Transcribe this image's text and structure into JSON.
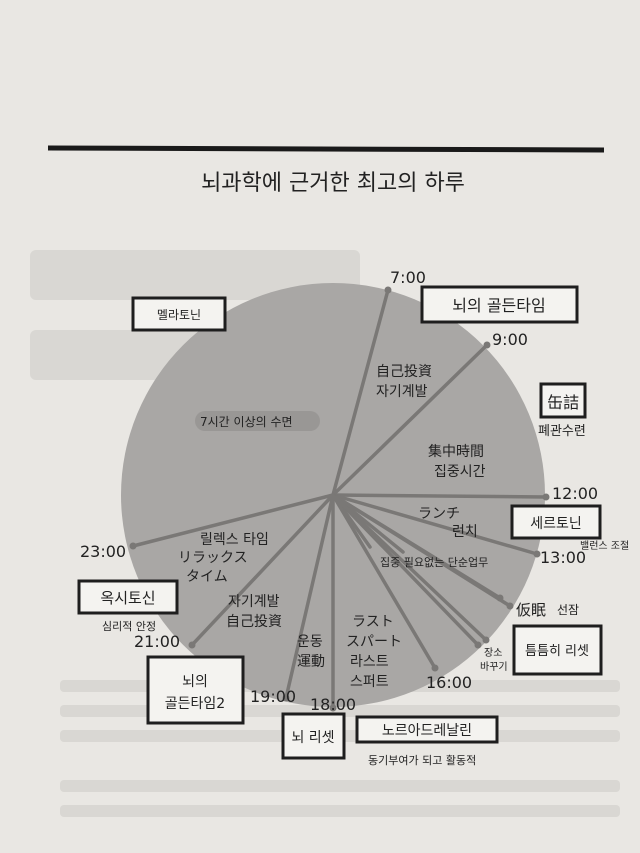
{
  "title": "뇌과학에 근거한 최고의 하루",
  "times": {
    "t7": "7:00",
    "t9": "9:00",
    "t12": "12:00",
    "t13": "13:00",
    "t16": "16:00",
    "t18": "18:00",
    "t19": "19:00",
    "t21": "21:00",
    "t23": "23:00"
  },
  "segments": {
    "sleep": "7시간 이상의 수면",
    "self_dev_morning_jp": "自己投資",
    "self_dev_morning_kr": "자기계발",
    "focus_jp": "集中時間",
    "focus_kr": "집중시간",
    "lunch_jp": "ランチ",
    "lunch_kr": "런치",
    "simple_work": "집중 필요없는 단순업무",
    "last_spurt_jp1": "ラスト",
    "last_spurt_jp2": "スパート",
    "last_spurt_kr1": "라스트",
    "last_spurt_kr2": "스퍼트",
    "exercise_kr": "운동",
    "exercise_jp": "運動",
    "self_dev_evening_kr": "자기계발",
    "self_dev_evening_jp": "自己投資",
    "relax_kr": "릴렉스 타임",
    "relax_jp1": "リラックス",
    "relax_jp2": "タイム"
  },
  "annotations": {
    "melatonin": "멜라토닌",
    "golden_time": "뇌의 골든타임",
    "kanzume_jp": "缶詰",
    "kanzume_kr": "폐관수련",
    "serotonin": "세르토닌",
    "balance": "밸런스 조절",
    "nap_jp": "仮眠",
    "nap_kr": "선잠",
    "reset_quick": "틈틈히 리셋",
    "change_place1": "장소",
    "change_place2": "바꾸기",
    "noradrenaline": "노르아드레날린",
    "motivation": "동기부여가 되고 활동적",
    "brain_reset": "뇌 리셋",
    "golden_time2_1": "뇌의",
    "golden_time2_2": "골든타임2",
    "oxytocin": "옥시토신",
    "stability": "심리적 안정"
  },
  "colors": {
    "pie": "#a9a7a5",
    "page": "#e9e7e3",
    "divider": "#7a7876"
  }
}
